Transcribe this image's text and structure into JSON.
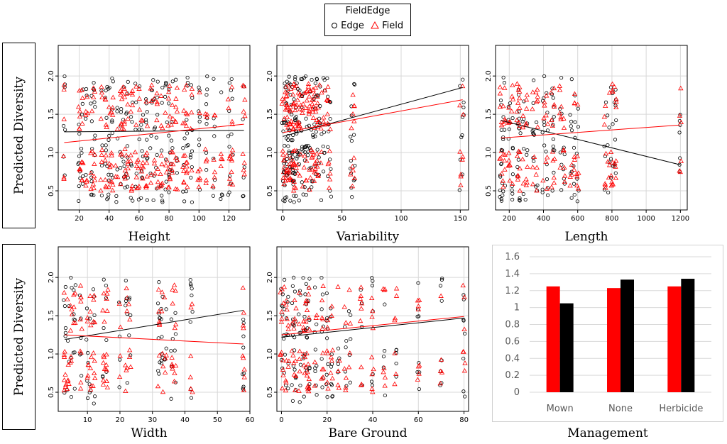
{
  "legend": {
    "title": "FieldEdge",
    "items": [
      {
        "name": "Edge",
        "marker": "circle",
        "color": "#000000"
      },
      {
        "name": "Field",
        "marker": "triangle",
        "color": "#ff0000"
      }
    ]
  },
  "ylabel": "Predicted Diversity",
  "colors": {
    "edge": "#000000",
    "field": "#ff0000",
    "grid": "#d8d8d8"
  },
  "chart_data": [
    {
      "type": "scatter",
      "xlabel": "Height",
      "xlim": [
        6,
        134
      ],
      "ylim": [
        0.25,
        2.4
      ],
      "xticks": [
        20,
        40,
        60,
        80,
        100,
        120
      ],
      "xtick_labels": [
        "20",
        "40",
        "60",
        "80",
        "100",
        "120"
      ],
      "yticks": [
        0.5,
        1.0,
        1.5,
        2.0
      ],
      "ytick_labels": [
        "0.5",
        "1.0",
        "1.5",
        "2.0"
      ],
      "grid": true,
      "x_groups": [
        10,
        20,
        22,
        25,
        28,
        30,
        35,
        38,
        40,
        42,
        45,
        48,
        50,
        52,
        55,
        58,
        60,
        62,
        65,
        68,
        70,
        72,
        75,
        78,
        80,
        82,
        85,
        90,
        92,
        95,
        100,
        105,
        110,
        115,
        120,
        122,
        130
      ],
      "fit_lines": [
        {
          "series": "Edge",
          "x": [
            10,
            130
          ],
          "y": [
            1.27,
            1.29
          ]
        },
        {
          "series": "Field",
          "x": [
            10,
            130
          ],
          "y": [
            1.13,
            1.37
          ]
        }
      ]
    },
    {
      "type": "scatter",
      "xlabel": "Variability",
      "xlim": [
        -5,
        157
      ],
      "ylim": [
        0.25,
        2.4
      ],
      "xticks": [
        0,
        50,
        100,
        150
      ],
      "xtick_labels": [
        "0",
        "50",
        "100",
        "150"
      ],
      "yticks": [
        0.5,
        1.0,
        1.5,
        2.0
      ],
      "ytick_labels": [
        "0.5",
        "1.0",
        "1.5",
        "2.0"
      ],
      "grid": true,
      "x_groups": [
        0,
        1,
        2,
        3,
        4,
        5,
        6,
        7,
        8,
        9,
        10,
        11,
        12,
        14,
        15,
        16,
        18,
        20,
        22,
        24,
        25,
        26,
        28,
        30,
        32,
        35,
        38,
        40,
        58,
        60,
        150,
        152
      ],
      "fit_lines": [
        {
          "series": "Edge",
          "x": [
            0,
            152
          ],
          "y": [
            1.21,
            1.85
          ]
        },
        {
          "series": "Field",
          "x": [
            0,
            152
          ],
          "y": [
            1.26,
            1.69
          ]
        }
      ]
    },
    {
      "type": "scatter",
      "xlabel": "Length",
      "xlim": [
        120,
        1240
      ],
      "ylim": [
        0.25,
        2.4
      ],
      "xticks": [
        200,
        400,
        600,
        800,
        1000,
        1200
      ],
      "xtick_labels": [
        "200",
        "400",
        "600",
        "800",
        "1000",
        "1200"
      ],
      "yticks": [
        0.5,
        1.0,
        1.5,
        2.0
      ],
      "ytick_labels": [
        "0.5",
        "1.0",
        "1.5",
        "2.0"
      ],
      "grid": true,
      "x_groups": [
        150,
        160,
        170,
        200,
        220,
        250,
        260,
        280,
        300,
        340,
        360,
        400,
        420,
        450,
        460,
        500,
        520,
        560,
        580,
        600,
        760,
        780,
        800,
        820,
        1200
      ],
      "fit_lines": [
        {
          "series": "Edge",
          "x": [
            150,
            1200
          ],
          "y": [
            1.42,
            0.84
          ]
        },
        {
          "series": "Field",
          "x": [
            150,
            1200
          ],
          "y": [
            1.19,
            1.36
          ]
        }
      ]
    },
    {
      "type": "scatter",
      "xlabel": "Width",
      "xlim": [
        1,
        60
      ],
      "ylim": [
        0.25,
        2.4
      ],
      "xticks": [
        10,
        20,
        30,
        40,
        50,
        60
      ],
      "xtick_labels": [
        "10",
        "20",
        "30",
        "40",
        "50",
        "60"
      ],
      "yticks": [
        0.5,
        1.0,
        1.5,
        2.0
      ],
      "ytick_labels": [
        "0.5",
        "1.0",
        "1.5",
        "2.0"
      ],
      "grid": true,
      "x_groups": [
        3,
        4,
        5,
        6,
        8,
        10,
        11,
        12,
        15,
        16,
        20,
        22,
        23,
        32,
        33,
        34,
        36,
        37,
        42,
        58
      ],
      "fit_lines": [
        {
          "series": "Edge",
          "x": [
            3,
            58
          ],
          "y": [
            1.19,
            1.57
          ]
        },
        {
          "series": "Field",
          "x": [
            3,
            58
          ],
          "y": [
            1.25,
            1.13
          ]
        }
      ]
    },
    {
      "type": "scatter",
      "xlabel": "Bare Ground",
      "xlim": [
        -2,
        82
      ],
      "ylim": [
        0.25,
        2.4
      ],
      "xticks": [
        0,
        20,
        40,
        60,
        80
      ],
      "xtick_labels": [
        "0",
        "20",
        "40",
        "60",
        "80"
      ],
      "yticks": [
        0.5,
        1.0,
        1.5,
        2.0
      ],
      "ytick_labels": [
        "0.5",
        "1.0",
        "1.5",
        "2.0"
      ],
      "grid": true,
      "x_groups": [
        0,
        1,
        2,
        3,
        5,
        6,
        8,
        10,
        11,
        12,
        15,
        18,
        20,
        22,
        25,
        28,
        30,
        35,
        40,
        45,
        50,
        60,
        70,
        80
      ],
      "fit_lines": [
        {
          "series": "Edge",
          "x": [
            0,
            80
          ],
          "y": [
            1.22,
            1.47
          ]
        },
        {
          "series": "Field",
          "x": [
            0,
            80
          ],
          "y": [
            1.25,
            1.49
          ]
        }
      ]
    },
    {
      "type": "bar",
      "xlabel": "Management",
      "categories": [
        "Mown",
        "None",
        "Herbicide"
      ],
      "ylim": [
        0,
        1.6
      ],
      "yticks": [
        0,
        0.2,
        0.4,
        0.6,
        0.8,
        1,
        1.2,
        1.4,
        1.6
      ],
      "ytick_labels": [
        "0",
        "0.2",
        "0.4",
        "0.6",
        "0.8",
        "1",
        "1.2",
        "1.4",
        "1.6"
      ],
      "grid": true,
      "series": [
        {
          "name": "Field",
          "color": "#ff0000",
          "values": [
            1.25,
            1.23,
            1.25
          ]
        },
        {
          "name": "Edge",
          "color": "#000000",
          "values": [
            1.05,
            1.33,
            1.34
          ]
        }
      ]
    }
  ]
}
